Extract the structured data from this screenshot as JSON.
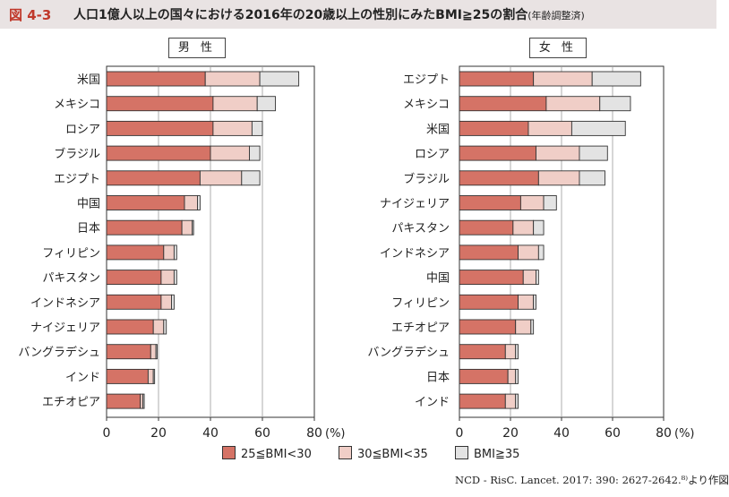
{
  "figure": {
    "label": "図 4-3",
    "title": "人口1億人以上の国々における2016年の20歳以上の性別にみたBMI≧25の割合",
    "title_note": "(年齢調整済)",
    "source": "NCD - RisC. Lancet. 2017: 390: 2627-2642.⁸⁾より作図"
  },
  "colors": {
    "s1": "#d57366",
    "s2": "#f0cec7",
    "s3": "#e3e3e3",
    "outline": "#333333"
  },
  "chart_data": [
    {
      "type": "bar",
      "orientation": "horizontal",
      "stacked": true,
      "title": "男 性",
      "categories": [
        "米国",
        "メキシコ",
        "ロシア",
        "ブラジル",
        "エジプト",
        "中国",
        "日本",
        "フィリピン",
        "パキスタン",
        "インドネシア",
        "ナイジェリア",
        "バングラデシュ",
        "インド",
        "エチオピア"
      ],
      "series": [
        {
          "name": "25≦BMI<30",
          "values": [
            38,
            41,
            41,
            40,
            36,
            30,
            29,
            22,
            21,
            21,
            18,
            17,
            16,
            13
          ]
        },
        {
          "name": "30≦BMI<35",
          "values": [
            21,
            17,
            15,
            15,
            16,
            5,
            4,
            4,
            5,
            4,
            4,
            2,
            2,
            1
          ]
        },
        {
          "name": "BMI≧35",
          "values": [
            15,
            7,
            4,
            4,
            7,
            1,
            0.5,
            1,
            1,
            1,
            1,
            0.5,
            0.5,
            0.5
          ]
        }
      ],
      "xlim": [
        0,
        80
      ],
      "xticks": [
        0,
        20,
        40,
        60,
        80
      ],
      "xtick_labels": [
        "0",
        "20",
        "40",
        "60",
        "80"
      ],
      "unit": "(%)",
      "grid": true
    },
    {
      "type": "bar",
      "orientation": "horizontal",
      "stacked": true,
      "title": "女 性",
      "categories": [
        "エジプト",
        "メキシコ",
        "米国",
        "ロシア",
        "ブラジル",
        "ナイジェリア",
        "パキスタン",
        "インドネシア",
        "中国",
        "フィリピン",
        "エチオピア",
        "バングラデシュ",
        "日本",
        "インド"
      ],
      "series": [
        {
          "name": "25≦BMI<30",
          "values": [
            29,
            34,
            27,
            30,
            31,
            24,
            21,
            23,
            25,
            23,
            22,
            18,
            19,
            18
          ]
        },
        {
          "name": "30≦BMI<35",
          "values": [
            23,
            21,
            17,
            17,
            16,
            9,
            8,
            8,
            5,
            6,
            6,
            4,
            3,
            4
          ]
        },
        {
          "name": "BMI≧35",
          "values": [
            19,
            12,
            21,
            11,
            10,
            5,
            4,
            2,
            1,
            1,
            1,
            1,
            1,
            1
          ]
        }
      ],
      "xlim": [
        0,
        80
      ],
      "xticks": [
        0,
        20,
        40,
        60,
        80
      ],
      "xtick_labels": [
        "0",
        "20",
        "40",
        "60",
        "80"
      ],
      "unit": "(%)",
      "grid": true
    }
  ],
  "legend": [
    {
      "label": "25≦BMI<30"
    },
    {
      "label": "30≦BMI<35"
    },
    {
      "label": "BMI≧35"
    }
  ]
}
